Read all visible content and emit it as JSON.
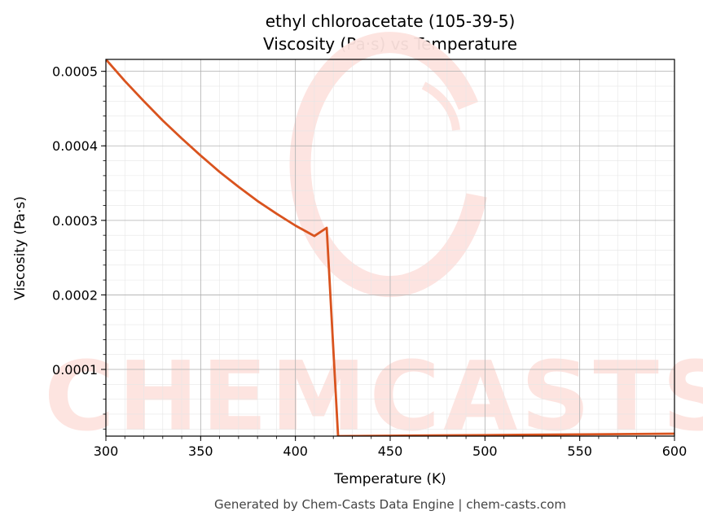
{
  "chart_data": {
    "type": "line",
    "title_line1": "ethyl chloroacetate (105-39-5)",
    "title_line2": "Viscosity (Pa·s) vs Temperature",
    "xlabel": "Temperature (K)",
    "ylabel": "Viscosity (Pa·s)",
    "xlim": [
      300,
      600
    ],
    "ylim": [
      1.05e-05,
      0.000516
    ],
    "x_ticks": [
      300,
      350,
      400,
      450,
      500,
      550,
      600
    ],
    "x_tick_labels": [
      "300",
      "350",
      "400",
      "450",
      "500",
      "550",
      "600"
    ],
    "y_ticks": [
      0.0001,
      0.0002,
      0.0003,
      0.0004,
      0.0005
    ],
    "y_tick_labels": [
      "0.0001",
      "0.0002",
      "0.0003",
      "0.0004",
      "0.0005"
    ],
    "grid": true,
    "line_color": "#d9531e",
    "series": [
      {
        "x": [
          300,
          310,
          320,
          330,
          340,
          350,
          360,
          370,
          380,
          390,
          400,
          410,
          416.5,
          422.5,
          450,
          500,
          550,
          600
        ],
        "y": [
          0.000516,
          0.000487,
          0.00046,
          0.000434,
          0.00041,
          0.000387,
          0.000365,
          0.000345,
          0.000326,
          0.000309,
          0.000293,
          0.000279,
          0.00029,
          1.05e-05,
          1.1e-05,
          1.19e-05,
          1.28e-05,
          1.38e-05
        ]
      }
    ]
  },
  "watermark": {
    "text": "CHEMCASTS",
    "color": "#fde3df"
  },
  "footer": "Generated by Chem-Casts Data Engine | chem-casts.com"
}
